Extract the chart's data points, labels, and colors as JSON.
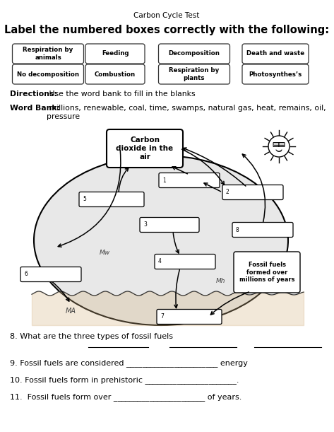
{
  "title_small": "Carbon Cycle Test",
  "title_large": "Label the numbered boxes correctly with the following:",
  "word_bank_row1": [
    "Respiration by\nanimals",
    "Feeding",
    "Decomposition",
    "Death and waste"
  ],
  "word_bank_row2": [
    "No decomposition",
    "Combustion",
    "Respiration by\nplants",
    "Photosynthes’s"
  ],
  "directions_bold": "Directions:",
  "directions_rest": " Use the word bank to fill in the blanks",
  "word_bank_bold": "Word Bank:",
  "word_bank_rest": " millions, renewable, coal, time, swamps, natural gas, heat, remains, oil,\npressure",
  "co2_label": "Carbon\ndioxide in the\nair",
  "fossil_label": "Fossil fuels\nformed over\nmillions of years",
  "q8": "8. What are the three types of fossil fuels",
  "q9": "9. Fossil fuels are considered _______________________ energy",
  "q10": "10. Fossil fuels form in prehistoric _______________________.",
  "q11": "11.  Fossil fuels form over _______________________ of years.",
  "bg_color": "#ffffff"
}
